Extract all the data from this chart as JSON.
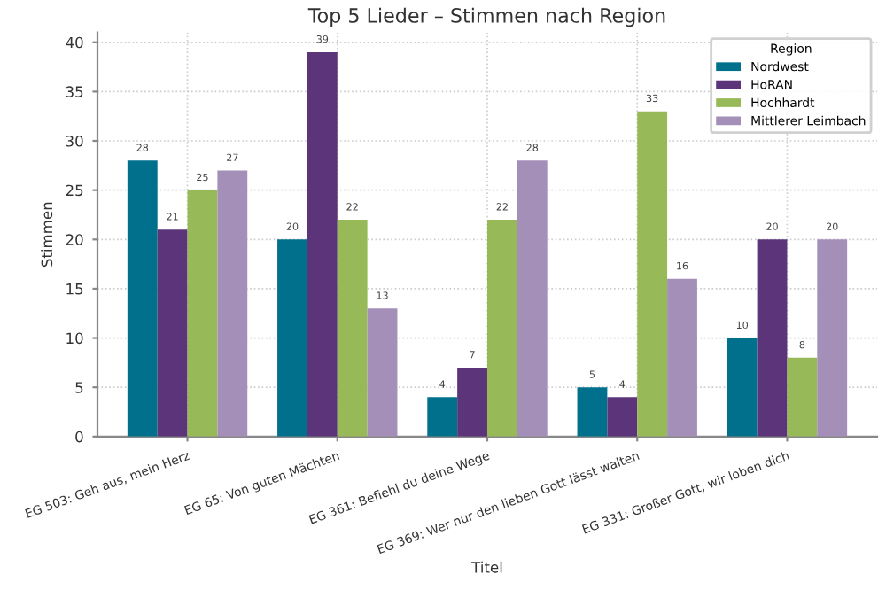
{
  "chart_data": {
    "type": "bar",
    "title": "Top 5 Lieder – Stimmen nach Region",
    "xlabel": "Titel",
    "ylabel": "Stimmen",
    "legend_title": "Region",
    "categories": [
      "EG 503: Geh aus, mein Herz",
      "EG 65: Von guten Mächten",
      "EG 361: Befiehl du deine Wege",
      "EG 369: Wer nur den lieben Gott lässt walten",
      "EG 331: Großer Gott, wir loben dich"
    ],
    "series": [
      {
        "name": "Nordwest",
        "color": "#00708c",
        "values": [
          28,
          20,
          4,
          5,
          10
        ]
      },
      {
        "name": "HoRAN",
        "color": "#5b3479",
        "values": [
          21,
          39,
          7,
          4,
          20
        ]
      },
      {
        "name": "Hochhardt",
        "color": "#98b957",
        "values": [
          25,
          22,
          22,
          33,
          8
        ]
      },
      {
        "name": "Mittlerer Leimbach",
        "color": "#a48fb8",
        "values": [
          27,
          13,
          28,
          16,
          20
        ]
      }
    ],
    "ylim": [
      0,
      41
    ],
    "yticks": [
      0,
      5,
      10,
      15,
      20,
      25,
      30,
      35,
      40
    ],
    "grid": true,
    "legend": "top right",
    "data_labels": true
  }
}
